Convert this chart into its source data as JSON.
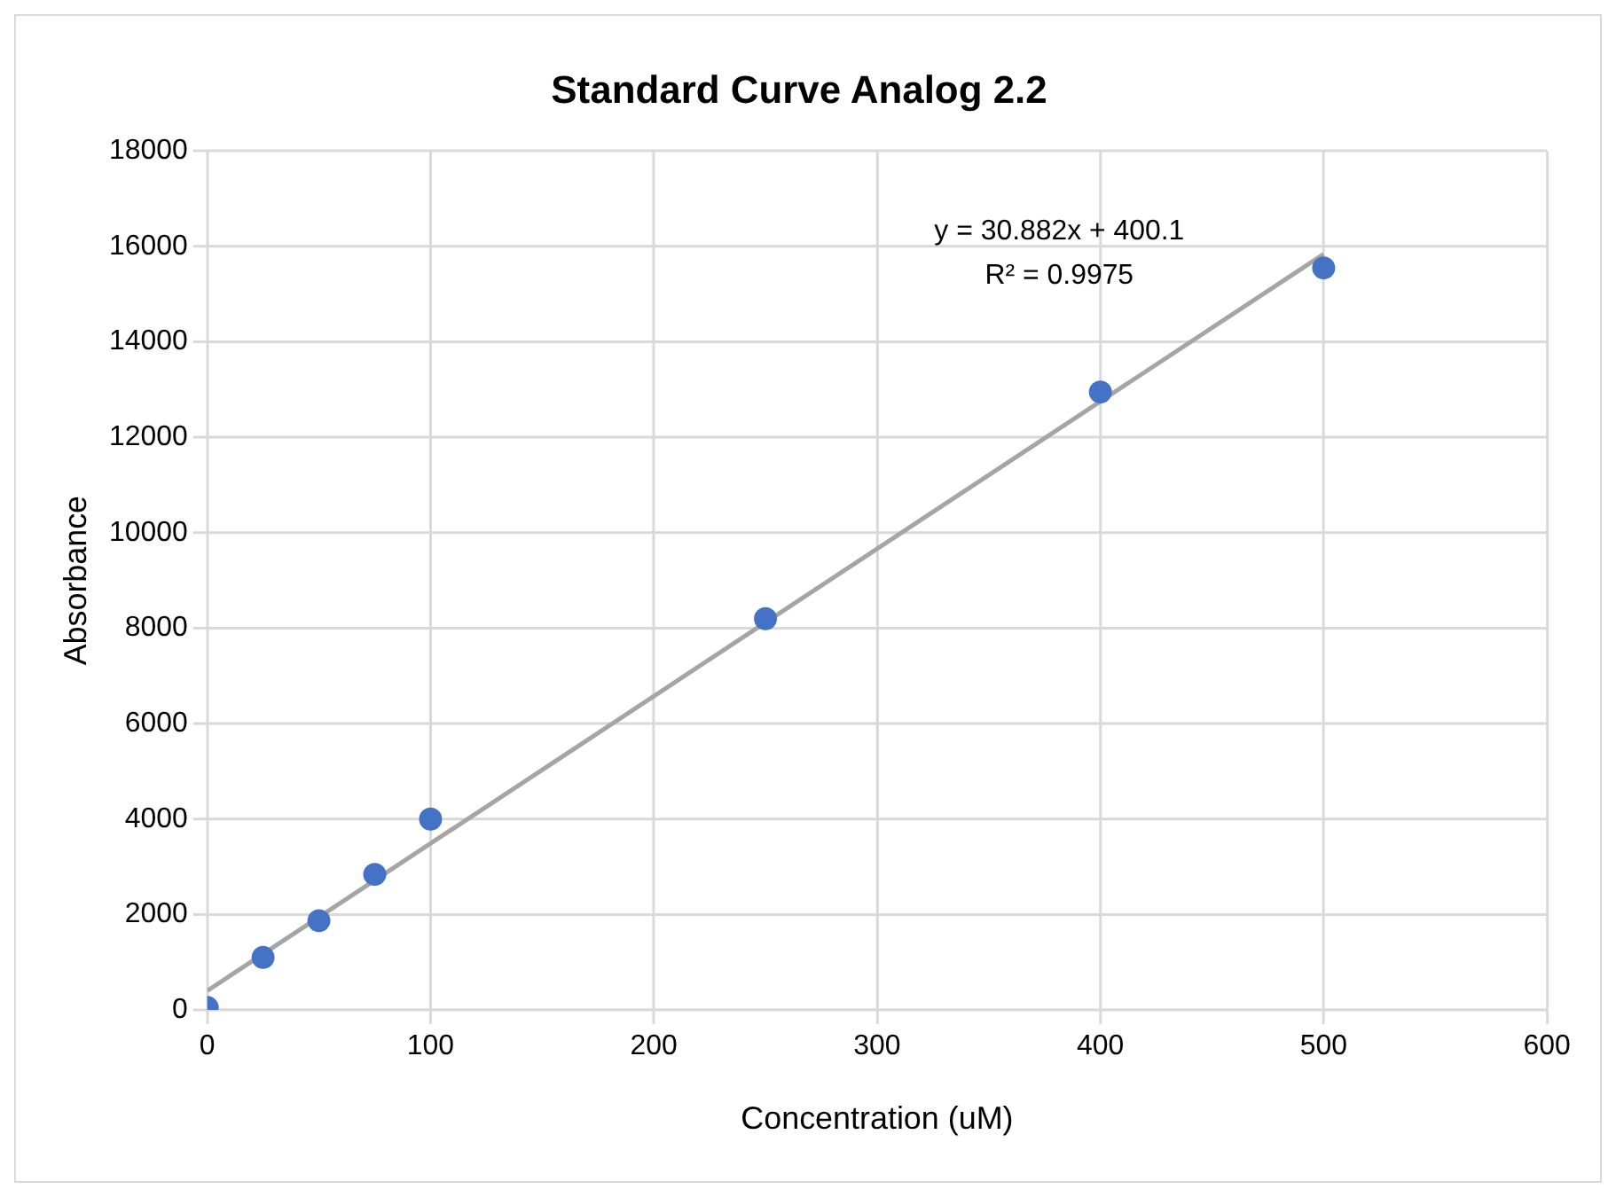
{
  "chart_data": {
    "type": "scatter",
    "title": "Standard Curve Analog 2.2",
    "xlabel": "Concentration (uM)",
    "ylabel": "Absorbance",
    "series": [
      {
        "type": "scatter",
        "color": "#4472c4",
        "marker": "circle",
        "x": [
          0,
          25,
          50,
          75,
          100,
          250,
          400,
          500
        ],
        "values": [
          50,
          1100,
          1870,
          2840,
          4000,
          8200,
          12950,
          15550
        ]
      },
      {
        "type": "line",
        "color": "#a5a5a5",
        "marker": "none",
        "x": [
          0,
          500
        ],
        "values": [
          400,
          15840
        ]
      }
    ],
    "xlim": [
      0,
      600
    ],
    "xticks": [
      0,
      100,
      200,
      300,
      400,
      500,
      600
    ],
    "ylim": [
      0,
      18000
    ],
    "yticks": [
      0,
      2000,
      4000,
      6000,
      8000,
      10000,
      12000,
      14000,
      16000,
      18000
    ],
    "annotations": [
      "y = 30.882x + 400.1",
      "R² = 0.9975"
    ],
    "grid": true,
    "legend": false
  }
}
